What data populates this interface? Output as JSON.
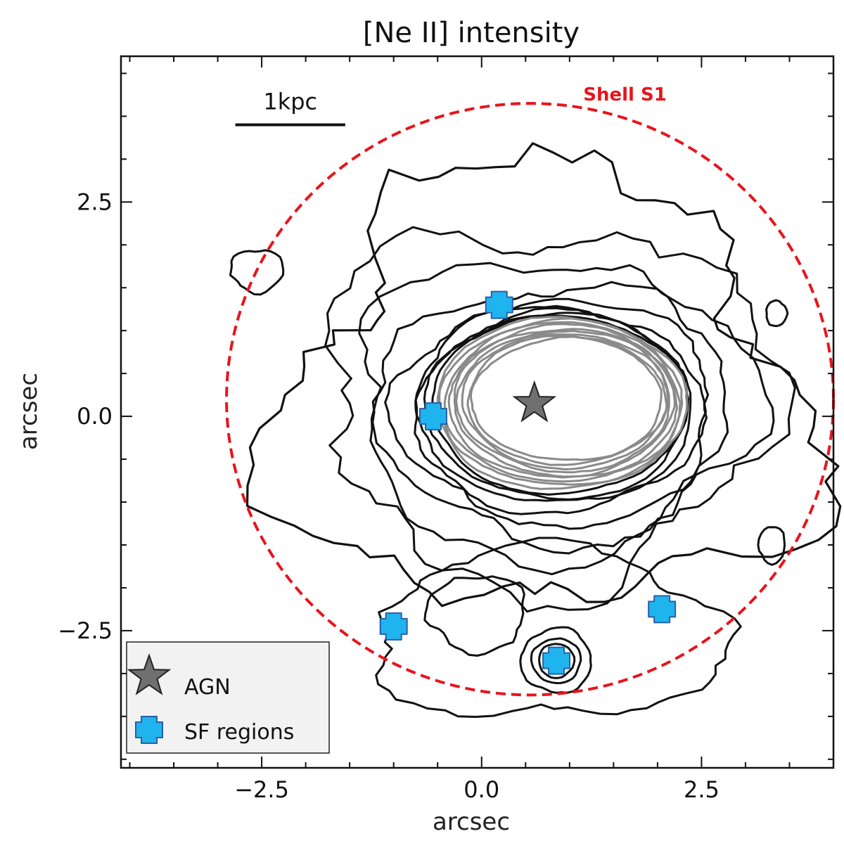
{
  "chart_data": {
    "type": "contour",
    "title": "[Ne II] intensity",
    "xlabel": "arcsec",
    "ylabel": "arcsec",
    "xlim": [
      -4.1,
      4.0
    ],
    "ylim": [
      -4.1,
      4.2
    ],
    "xticks": [
      -2.5,
      0.0,
      2.5
    ],
    "yticks": [
      2.5,
      0.0,
      -2.5
    ],
    "xtick_labels": [
      "−2.5",
      "0.0",
      "2.5"
    ],
    "ytick_labels": [
      "2.5",
      "0.0",
      "−2.5"
    ],
    "grid": false,
    "scale_bar": {
      "label": "1kpc",
      "x_from": -2.8,
      "x_to": -1.55,
      "y": 3.4
    },
    "shell": {
      "label": "Shell S1",
      "center": [
        0.55,
        0.2
      ],
      "radius": 3.45,
      "color": "#e8141c"
    },
    "agn": {
      "name": "AGN",
      "x": 0.6,
      "y": 0.15,
      "color": "#707070"
    },
    "sf_regions": {
      "name": "SF regions",
      "color": "#1fb4ee",
      "points": [
        {
          "x": 0.2,
          "y": 1.3
        },
        {
          "x": -0.55,
          "y": 0.0
        },
        {
          "x": -1.0,
          "y": -2.45
        },
        {
          "x": 2.05,
          "y": -2.25
        },
        {
          "x": 0.85,
          "y": -2.85
        }
      ]
    },
    "legend": {
      "placement": "lower-left",
      "entries": [
        "AGN",
        "SF regions"
      ]
    },
    "outer_contour_levels": [
      {
        "rx": 2.55,
        "ry": 2.1,
        "cx": 0.75,
        "cy": 0.15,
        "jitter": 0.22
      },
      {
        "rx": 2.25,
        "ry": 1.75,
        "cx": 0.8,
        "cy": 0.1,
        "jitter": 0.16
      },
      {
        "rx": 2.0,
        "ry": 1.5,
        "cx": 0.82,
        "cy": 0.05,
        "jitter": 0.13
      },
      {
        "rx": 1.8,
        "ry": 1.32,
        "cx": 0.85,
        "cy": 0.05,
        "jitter": 0.1
      },
      {
        "rx": 1.65,
        "ry": 1.2,
        "cx": 0.85,
        "cy": 0.08,
        "jitter": 0.07
      },
      {
        "rx": 1.55,
        "ry": 1.12,
        "cx": 0.85,
        "cy": 0.1,
        "jitter": 0.05
      },
      {
        "rx": 1.5,
        "ry": 1.08,
        "cx": 0.87,
        "cy": 0.12,
        "jitter": 0.04
      },
      {
        "rx": 1.45,
        "ry": 1.04,
        "cx": 0.88,
        "cy": 0.14,
        "jitter": 0.03
      }
    ],
    "inner_contour_levels": 9,
    "outer_envelope": {
      "rx": 2.95,
      "ry": 2.55,
      "cx": 0.7,
      "cy": 0.25,
      "jitter": 0.3
    }
  }
}
